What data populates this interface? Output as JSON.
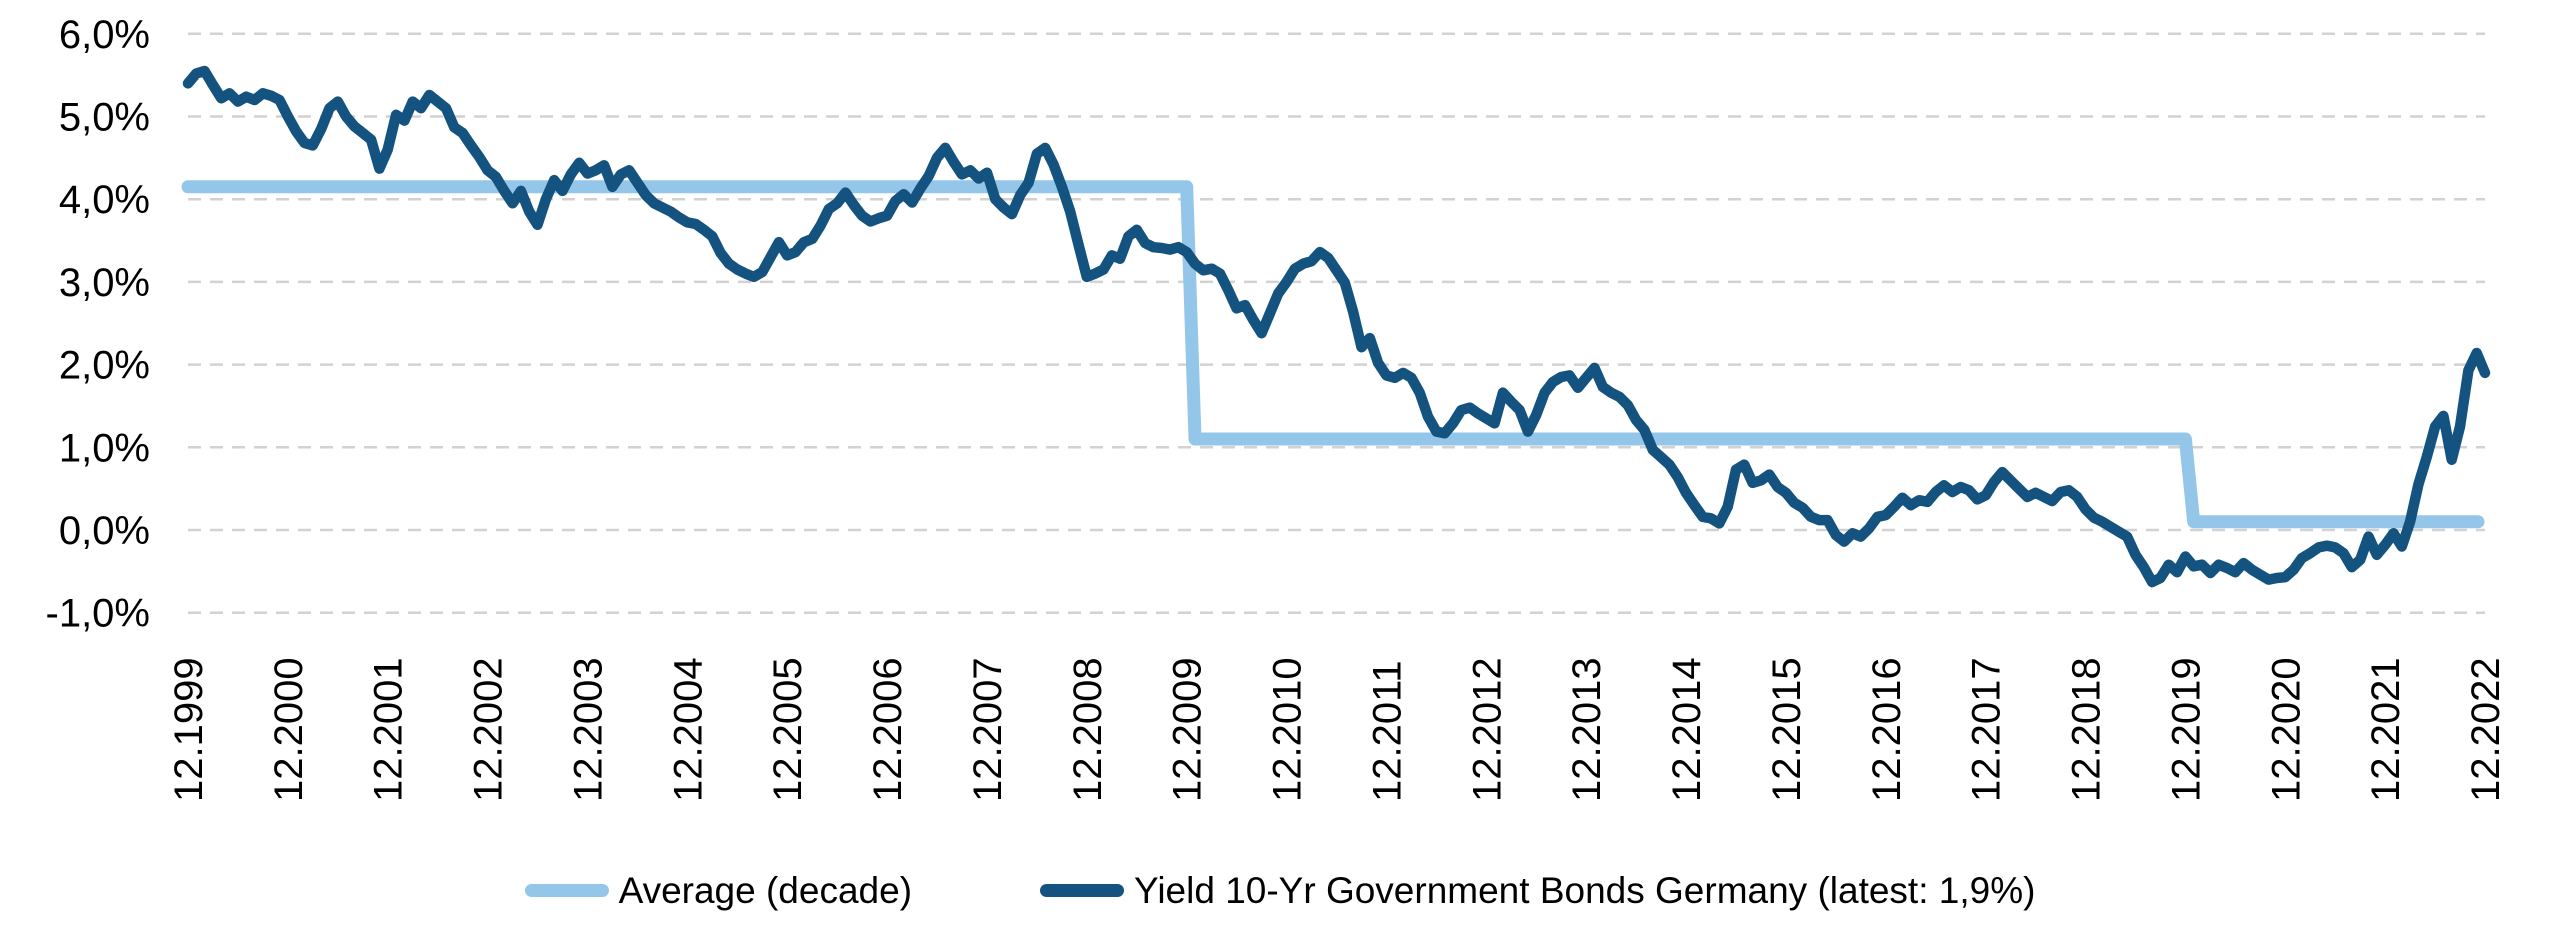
{
  "chart_data": {
    "type": "line",
    "title": "",
    "x_axis": {
      "start": "12.1999",
      "end": "12.2022",
      "frequency": "monthly",
      "tick_labels": [
        "12.1999",
        "12.2000",
        "12.2001",
        "12.2002",
        "12.2003",
        "12.2004",
        "12.2005",
        "12.2006",
        "12.2007",
        "12.2008",
        "12.2009",
        "12.2010",
        "12.2011",
        "12.2012",
        "12.2013",
        "12.2014",
        "12.2015",
        "12.2016",
        "12.2017",
        "12.2018",
        "12.2019",
        "12.2020",
        "12.2021",
        "12.2022"
      ]
    },
    "y_axis": {
      "tick_labels": [
        "6,0%",
        "5,0%",
        "4,0%",
        "3,0%",
        "2,0%",
        "1,0%",
        "0,0%",
        "-1,0%"
      ],
      "tick_values": [
        6,
        5,
        4,
        3,
        2,
        1,
        0,
        -1
      ],
      "ylim": [
        -1.1,
        6.4
      ],
      "grid": "dashed"
    },
    "legend_position": "bottom",
    "grid_color": "#d2d2d2",
    "series": [
      {
        "name": "Average (decade)",
        "color": "#93c6e8",
        "style": "step",
        "segments": [
          {
            "start_index": 0,
            "end_index": 120,
            "value": 4.15
          },
          {
            "start_index": 121,
            "end_index": 240,
            "value": 1.1
          },
          {
            "start_index": 241,
            "end_index": 276,
            "value": 0.1
          }
        ]
      },
      {
        "name": "Yield 10-Yr Government Bonds Germany (latest: 1,9%)",
        "color": "#14537f",
        "latest": "1,9%",
        "monthly_values": [
          5.4,
          5.52,
          5.55,
          5.38,
          5.22,
          5.28,
          5.18,
          5.24,
          5.2,
          5.28,
          5.25,
          5.2,
          5.0,
          4.82,
          4.68,
          4.65,
          4.85,
          5.1,
          5.18,
          5.0,
          4.88,
          4.8,
          4.72,
          4.37,
          4.6,
          5.02,
          4.95,
          5.18,
          5.1,
          5.26,
          5.18,
          5.1,
          4.87,
          4.8,
          4.65,
          4.51,
          4.35,
          4.27,
          4.1,
          3.95,
          4.1,
          3.85,
          3.69,
          4.0,
          4.23,
          4.1,
          4.3,
          4.44,
          4.31,
          4.35,
          4.41,
          4.15,
          4.3,
          4.35,
          4.2,
          4.05,
          3.95,
          3.9,
          3.85,
          3.78,
          3.72,
          3.7,
          3.63,
          3.55,
          3.35,
          3.22,
          3.15,
          3.1,
          3.06,
          3.12,
          3.3,
          3.48,
          3.32,
          3.36,
          3.48,
          3.52,
          3.68,
          3.88,
          3.95,
          4.08,
          3.93,
          3.8,
          3.73,
          3.77,
          3.8,
          3.98,
          4.06,
          3.96,
          4.13,
          4.28,
          4.5,
          4.62,
          4.45,
          4.3,
          4.35,
          4.25,
          4.32,
          4.0,
          3.9,
          3.82,
          4.05,
          4.2,
          4.55,
          4.62,
          4.42,
          4.15,
          3.85,
          3.45,
          3.06,
          3.1,
          3.15,
          3.32,
          3.28,
          3.55,
          3.63,
          3.47,
          3.42,
          3.41,
          3.39,
          3.42,
          3.36,
          3.22,
          3.14,
          3.16,
          3.1,
          2.9,
          2.68,
          2.72,
          2.54,
          2.38,
          2.62,
          2.86,
          3.0,
          3.16,
          3.22,
          3.25,
          3.36,
          3.29,
          3.14,
          2.99,
          2.64,
          2.21,
          2.32,
          2.02,
          1.87,
          1.84,
          1.9,
          1.84,
          1.66,
          1.37,
          1.19,
          1.17,
          1.29,
          1.45,
          1.48,
          1.41,
          1.35,
          1.29,
          1.66,
          1.55,
          1.45,
          1.19,
          1.39,
          1.66,
          1.79,
          1.85,
          1.87,
          1.72,
          1.84,
          1.96,
          1.73,
          1.66,
          1.61,
          1.51,
          1.33,
          1.21,
          0.97,
          0.88,
          0.79,
          0.64,
          0.45,
          0.3,
          0.16,
          0.14,
          0.08,
          0.28,
          0.73,
          0.79,
          0.57,
          0.6,
          0.67,
          0.52,
          0.45,
          0.33,
          0.27,
          0.16,
          0.12,
          0.12,
          -0.06,
          -0.14,
          -0.04,
          -0.08,
          0.02,
          0.16,
          0.18,
          0.28,
          0.39,
          0.3,
          0.36,
          0.34,
          0.46,
          0.54,
          0.46,
          0.52,
          0.48,
          0.37,
          0.42,
          0.58,
          0.7,
          0.6,
          0.5,
          0.4,
          0.45,
          0.4,
          0.35,
          0.46,
          0.48,
          0.4,
          0.25,
          0.15,
          0.1,
          0.04,
          -0.02,
          -0.08,
          -0.3,
          -0.45,
          -0.63,
          -0.58,
          -0.42,
          -0.51,
          -0.32,
          -0.44,
          -0.42,
          -0.52,
          -0.42,
          -0.46,
          -0.51,
          -0.4,
          -0.48,
          -0.54,
          -0.6,
          -0.58,
          -0.57,
          -0.48,
          -0.34,
          -0.28,
          -0.21,
          -0.19,
          -0.21,
          -0.28,
          -0.45,
          -0.36,
          -0.08,
          -0.3,
          -0.18,
          -0.04,
          -0.2,
          0.1,
          0.55,
          0.88,
          1.25,
          1.38,
          0.85,
          1.25,
          1.93,
          2.14,
          1.9
        ]
      }
    ]
  },
  "legend": {
    "items": [
      {
        "label": "Average (decade)",
        "color": "#93c6e8"
      },
      {
        "label": "Yield 10-Yr Government Bonds Germany (latest: 1,9%)",
        "color": "#14537f"
      }
    ]
  }
}
